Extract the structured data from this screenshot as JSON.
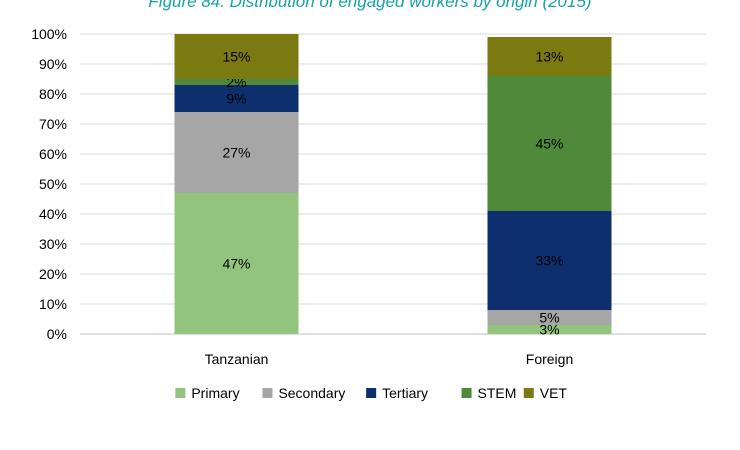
{
  "title": "Figure 84: Distribution of engaged workers by origin (2015)",
  "colors": {
    "Primary": "#92c47d",
    "Secondary": "#a6a6a6",
    "Tertiary": "#0e2f6e",
    "STEM": "#4f8a3a",
    "VET": "#7a7a10"
  },
  "chart_data": {
    "type": "bar",
    "stacked": true,
    "categories": [
      "Tanzanian",
      "Foreign"
    ],
    "series": [
      {
        "name": "Primary",
        "values": [
          47,
          3
        ],
        "labels": [
          "47%",
          "3%"
        ]
      },
      {
        "name": "Secondary",
        "values": [
          27,
          5
        ],
        "labels": [
          "27%",
          "5%"
        ]
      },
      {
        "name": "Tertiary",
        "values": [
          9,
          33
        ],
        "labels": [
          "9%",
          "33%"
        ]
      },
      {
        "name": "STEM",
        "values": [
          2,
          45
        ],
        "labels": [
          "2%",
          "45%"
        ]
      },
      {
        "name": "VET",
        "values": [
          15,
          13
        ],
        "labels": [
          "15%",
          "13%"
        ]
      }
    ],
    "ylim": [
      0,
      100
    ],
    "yticks": [
      "0%",
      "10%",
      "20%",
      "30%",
      "40%",
      "50%",
      "60%",
      "70%",
      "80%",
      "90%",
      "100%"
    ],
    "legend_position": "bottom",
    "grid": true
  }
}
